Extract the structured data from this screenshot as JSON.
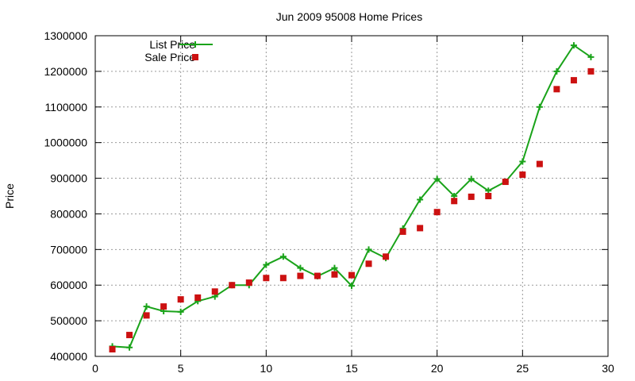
{
  "chart_data": {
    "type": "line",
    "title": "Jun 2009 95008 Home Prices",
    "xlabel": "",
    "ylabel": "Price",
    "xlim": [
      0,
      30
    ],
    "ylim": [
      400000,
      1300000
    ],
    "xticks": [
      0,
      5,
      10,
      15,
      20,
      25,
      30
    ],
    "yticks": [
      400000,
      500000,
      600000,
      700000,
      800000,
      900000,
      1000000,
      1100000,
      1200000,
      1300000
    ],
    "grid": true,
    "legend_position": "top-left",
    "series": [
      {
        "name": "List Price",
        "style": "line-plus",
        "color": "#1aa31a",
        "x": [
          1,
          2,
          3,
          4,
          5,
          6,
          7,
          8,
          9,
          10,
          11,
          12,
          13,
          14,
          15,
          16,
          17,
          18,
          19,
          20,
          21,
          22,
          23,
          24,
          25,
          26,
          27,
          28,
          29
        ],
        "y": [
          428000,
          425000,
          540000,
          527000,
          525000,
          555000,
          568000,
          600000,
          600000,
          657000,
          680000,
          648000,
          625000,
          648000,
          598000,
          700000,
          676000,
          759000,
          840000,
          898000,
          850000,
          898000,
          865000,
          890000,
          947000,
          1100000,
          1200000,
          1273000,
          1240000
        ]
      },
      {
        "name": "Sale Price",
        "style": "square",
        "color": "#cc1111",
        "x": [
          1,
          2,
          3,
          4,
          5,
          6,
          7,
          8,
          9,
          10,
          11,
          12,
          13,
          14,
          15,
          16,
          17,
          18,
          19,
          20,
          21,
          22,
          23,
          24,
          25,
          26,
          27,
          28,
          29
        ],
        "y": [
          420000,
          460000,
          515000,
          540000,
          560000,
          565000,
          582000,
          600000,
          607000,
          620000,
          620000,
          626000,
          626000,
          630000,
          628000,
          660000,
          680000,
          750000,
          760000,
          805000,
          836000,
          848000,
          850000,
          890000,
          910000,
          940000,
          1150000,
          1175000,
          1200000
        ]
      }
    ]
  }
}
